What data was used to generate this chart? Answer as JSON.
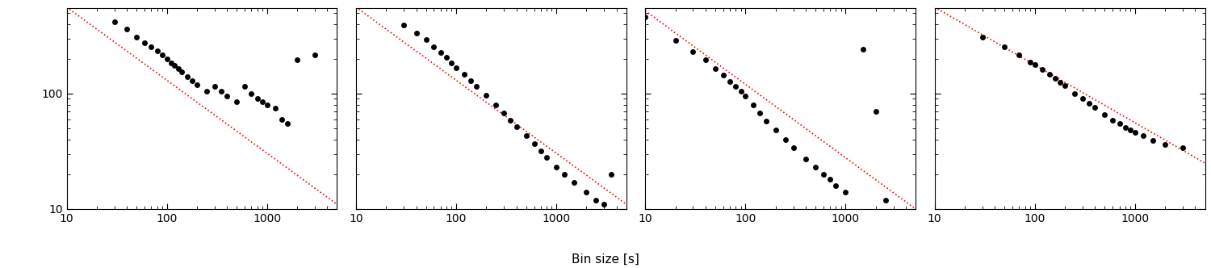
{
  "panels": [
    {
      "scatter_x": [
        30,
        40,
        50,
        60,
        70,
        80,
        90,
        100,
        110,
        120,
        130,
        140,
        160,
        180,
        200,
        250,
        300,
        350,
        400,
        500,
        600,
        700,
        800,
        900,
        1000,
        1200,
        1400,
        1600,
        2000,
        3000
      ],
      "scatter_y": [
        420,
        360,
        310,
        275,
        255,
        235,
        215,
        200,
        185,
        175,
        165,
        155,
        140,
        130,
        120,
        105,
        115,
        105,
        95,
        85,
        115,
        100,
        90,
        85,
        80,
        75,
        60,
        55,
        195,
        215
      ],
      "line_x": [
        10,
        5000
      ],
      "line_y": [
        560,
        11
      ],
      "xlim": [
        10,
        5000
      ],
      "ylim": [
        10,
        550
      ],
      "show_ylabel": true,
      "yticks": [
        10,
        100
      ],
      "ytick_labels": [
        "10",
        "100"
      ]
    },
    {
      "scatter_x": [
        30,
        40,
        50,
        60,
        70,
        80,
        90,
        100,
        120,
        140,
        160,
        200,
        250,
        300,
        350,
        400,
        500,
        600,
        700,
        800,
        1000,
        1200,
        1500,
        2000,
        2500,
        3000,
        3500
      ],
      "scatter_y": [
        390,
        335,
        295,
        255,
        225,
        205,
        185,
        168,
        148,
        130,
        116,
        96,
        80,
        68,
        59,
        52,
        43,
        37,
        32,
        28,
        23,
        20,
        17,
        14,
        12,
        11,
        20
      ],
      "line_x": [
        10,
        5000
      ],
      "line_y": [
        560,
        11
      ],
      "xlim": [
        10,
        5000
      ],
      "ylim": [
        10,
        550
      ],
      "show_ylabel": false,
      "yticks": [
        10,
        100
      ],
      "ytick_labels": [
        "",
        ""
      ]
    },
    {
      "scatter_x": [
        10,
        20,
        30,
        40,
        50,
        60,
        70,
        80,
        90,
        100,
        120,
        140,
        160,
        200,
        250,
        300,
        400,
        500,
        600,
        700,
        800,
        1000,
        1500,
        2000,
        2500
      ],
      "scatter_y": [
        460,
        290,
        230,
        195,
        165,
        145,
        128,
        115,
        105,
        95,
        80,
        68,
        58,
        48,
        40,
        34,
        27,
        23,
        20,
        18,
        16,
        14,
        240,
        70,
        12
      ],
      "line_x": [
        10,
        5000
      ],
      "line_y": [
        520,
        10
      ],
      "xlim": [
        10,
        5000
      ],
      "ylim": [
        10,
        550
      ],
      "show_ylabel": false,
      "yticks": [
        10,
        100
      ],
      "ytick_labels": [
        "",
        ""
      ]
    },
    {
      "scatter_x": [
        30,
        50,
        70,
        90,
        100,
        120,
        140,
        160,
        180,
        200,
        250,
        300,
        350,
        400,
        500,
        600,
        700,
        800,
        900,
        1000,
        1200,
        1500,
        2000,
        3000
      ],
      "scatter_y": [
        310,
        255,
        215,
        188,
        178,
        162,
        148,
        136,
        126,
        118,
        100,
        90,
        82,
        76,
        66,
        59,
        55,
        51,
        48,
        46,
        43,
        39,
        36,
        34
      ],
      "line_x": [
        10,
        5000
      ],
      "line_y": [
        560,
        25
      ],
      "xlim": [
        10,
        5000
      ],
      "ylim": [
        10,
        550
      ],
      "show_ylabel": false,
      "yticks": [
        10,
        100
      ],
      "ytick_labels": [
        "",
        ""
      ]
    }
  ],
  "xlabel": "Bin size [s]",
  "scatter_color": "#000000",
  "line_color": "red",
  "line_style": ":",
  "marker": "o",
  "marker_size": 25,
  "background_color": "white",
  "figure_width": 15.0,
  "figure_height": 3.32,
  "line_width": 1.2
}
